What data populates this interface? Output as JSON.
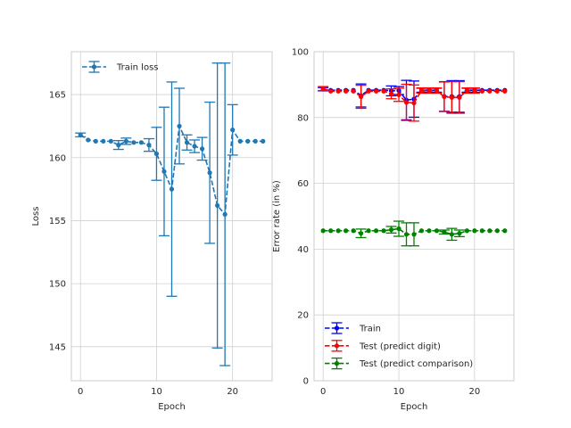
{
  "chart_data": [
    {
      "type": "line",
      "xlabel": "Epoch",
      "ylabel": "Loss",
      "xlim": [
        -1.2,
        25.2
      ],
      "ylim": [
        142.3,
        168.4
      ],
      "xticks": [
        0,
        10,
        20
      ],
      "yticks": [
        145,
        150,
        155,
        160,
        165
      ],
      "grid": true,
      "legend_position": "upper-left",
      "x": [
        0,
        1,
        2,
        3,
        4,
        5,
        6,
        7,
        8,
        9,
        10,
        11,
        12,
        13,
        14,
        15,
        16,
        17,
        18,
        19,
        20,
        21,
        22,
        23,
        24
      ],
      "series": [
        {
          "name": "Train loss",
          "color": "#1f77b4",
          "style": "dashed",
          "values": [
            161.8,
            161.4,
            161.3,
            161.3,
            161.3,
            161.0,
            161.3,
            161.2,
            161.2,
            161.0,
            160.3,
            158.9,
            157.5,
            162.5,
            161.2,
            160.9,
            160.7,
            158.8,
            156.2,
            155.5,
            162.2,
            161.3,
            161.3,
            161.3,
            161.3
          ],
          "errors": [
            0.15,
            0,
            0,
            0,
            0,
            0.35,
            0.25,
            0,
            0,
            0.5,
            2.1,
            5.1,
            8.5,
            3.0,
            0.6,
            0.5,
            0.9,
            5.6,
            11.3,
            12.0,
            2.0,
            0,
            0,
            0,
            0
          ]
        }
      ]
    },
    {
      "type": "line",
      "xlabel": "Epoch",
      "ylabel": "Error rate (in %)",
      "xlim": [
        -1.2,
        25.2
      ],
      "ylim": [
        0,
        100
      ],
      "xticks": [
        0,
        10,
        20
      ],
      "yticks": [
        0,
        20,
        40,
        60,
        80,
        100
      ],
      "grid": true,
      "legend_position": "lower-left",
      "x": [
        0,
        1,
        2,
        3,
        4,
        5,
        6,
        7,
        8,
        9,
        10,
        11,
        12,
        13,
        14,
        15,
        16,
        17,
        18,
        19,
        20,
        21,
        22,
        23,
        24
      ],
      "series": [
        {
          "name": "Train",
          "color": "#0000ff",
          "style": "dashed",
          "values": [
            88.6,
            88.3,
            88.3,
            88.3,
            88.3,
            86.7,
            88.3,
            88.3,
            88.3,
            88.1,
            88.2,
            85.3,
            85.6,
            88.3,
            88.3,
            88.3,
            86.4,
            86.4,
            86.4,
            88.3,
            88.3,
            88.3,
            88.3,
            88.3,
            88.3
          ],
          "errors": [
            0.5,
            0,
            0,
            0,
            0,
            3.5,
            0,
            0,
            0,
            1.5,
            1.2,
            6.0,
            5.5,
            0.6,
            0.6,
            0.6,
            4.5,
            4.8,
            4.8,
            0.6,
            0.6,
            0,
            0,
            0,
            0
          ]
        },
        {
          "name": "Test (predict digit)",
          "color": "#ff0000",
          "style": "dashed",
          "values": [
            88.8,
            88.0,
            88.0,
            88.0,
            88.0,
            86.3,
            88.0,
            88.0,
            88.0,
            87.2,
            86.9,
            84.6,
            84.4,
            88.2,
            88.2,
            88.2,
            86.3,
            86.1,
            86.1,
            88.2,
            88.2,
            88.0,
            88.0,
            88.0,
            88.0
          ],
          "errors": [
            0.6,
            0,
            0,
            0,
            0,
            3.5,
            0,
            0,
            0,
            1.5,
            2.0,
            5.5,
            5.5,
            0.8,
            0.8,
            0.8,
            4.5,
            4.8,
            4.8,
            0.8,
            0.8,
            0,
            0,
            0,
            0
          ]
        },
        {
          "name": "Test (predict comparison)",
          "color": "#008000",
          "style": "dashed",
          "values": [
            45.6,
            45.6,
            45.6,
            45.6,
            45.6,
            44.8,
            45.6,
            45.6,
            45.6,
            45.9,
            46.2,
            44.5,
            44.5,
            45.6,
            45.6,
            45.6,
            45.2,
            44.5,
            44.8,
            45.6,
            45.6,
            45.6,
            45.6,
            45.6,
            45.6
          ],
          "errors": [
            0,
            0,
            0,
            0,
            0,
            1.3,
            0,
            0,
            0,
            1.0,
            2.3,
            3.5,
            3.5,
            0,
            0,
            0,
            0.6,
            1.8,
            1.0,
            0,
            0,
            0,
            0,
            0,
            0
          ]
        }
      ]
    }
  ]
}
